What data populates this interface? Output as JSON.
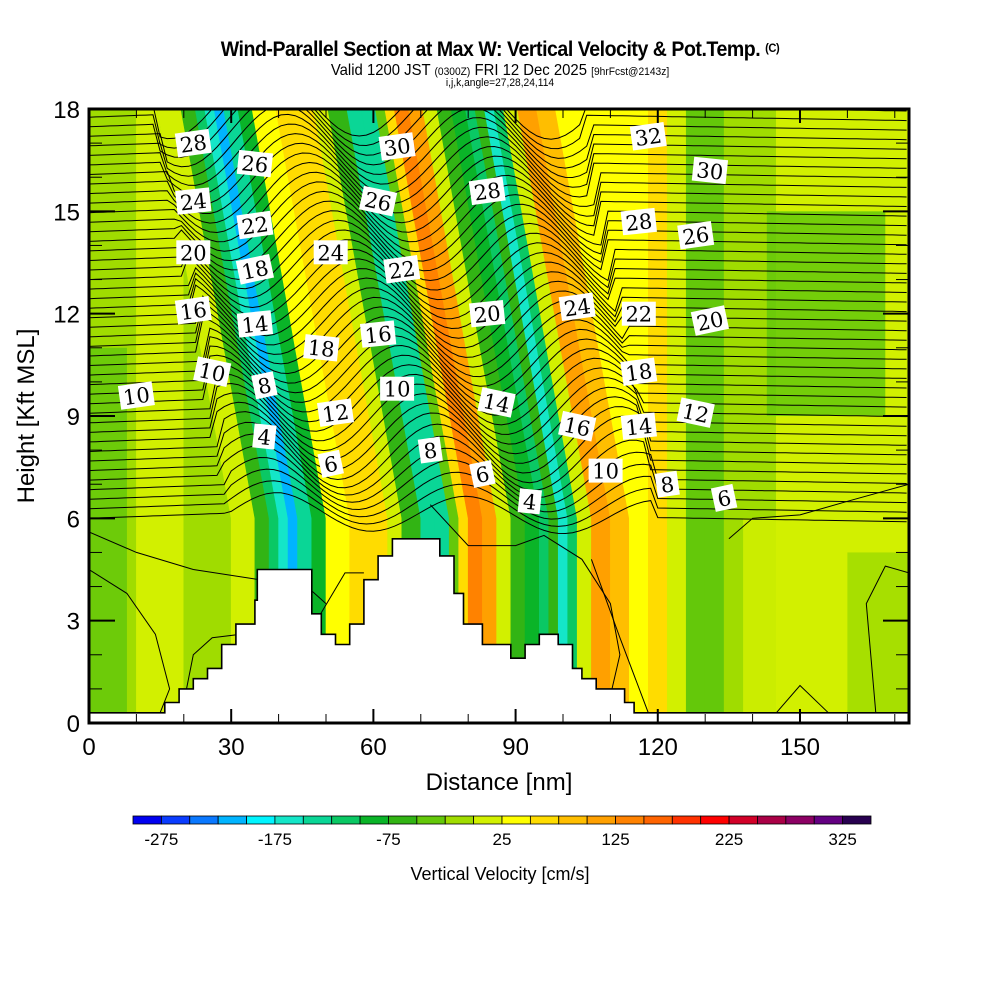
{
  "header": {
    "title": "Wind-Parallel Section at Max W: Vertical Velocity & Pot.Temp.",
    "title_mark": "(C)",
    "valid_prefix": "Valid 1200 JST",
    "valid_utc": "(0300Z)",
    "valid_date": "FRI 12 Dec 2025",
    "forecast_info": "[9hrFcst@2143z]",
    "indices": "i,j,k,angle=27,28,24,114"
  },
  "chart_data": {
    "type": "heatmap",
    "title": "Wind-Parallel Section at Max W: Vertical Velocity & Pot.Temp.",
    "xlabel": "Distance [nm]",
    "ylabel": "Height [Kft MSL]",
    "xlim": [
      0,
      173
    ],
    "ylim": [
      0,
      18
    ],
    "xticks": [
      0,
      30,
      60,
      90,
      120,
      150
    ],
    "xtick_labels": [
      "0",
      "30",
      "60",
      "90",
      "120",
      "150"
    ],
    "xminor_step": 10,
    "yticks": [
      0,
      3,
      6,
      9,
      12,
      15,
      18
    ],
    "ytick_labels": [
      "0",
      "3",
      "6",
      "9",
      "12",
      "15",
      "18"
    ],
    "yminor_step": 1,
    "grid": false,
    "colorbar": {
      "label": "Vertical Velocity [cm/s]",
      "placement": "bottom",
      "min": -300,
      "max": 350,
      "step": 25,
      "tick_values": [
        -275,
        -175,
        -75,
        25,
        125,
        225,
        325
      ],
      "tick_labels": [
        "-275",
        "-175",
        "-75",
        "25",
        "125",
        "225",
        "325"
      ],
      "colors": [
        "#0000f0",
        "#0a3cff",
        "#0a78ff",
        "#00b4ff",
        "#00f5ff",
        "#14e6c8",
        "#0ad696",
        "#0ac864",
        "#0ab428",
        "#32b414",
        "#64c80a",
        "#a0dc00",
        "#d2f000",
        "#ffff00",
        "#ffdc00",
        "#ffbe00",
        "#ffa000",
        "#ff8200",
        "#ff6400",
        "#ff3200",
        "#ff0000",
        "#d20028",
        "#aa0046",
        "#8c0064",
        "#640082",
        "#280050"
      ]
    },
    "velocity_bands": {
      "description": "Vertical velocity (cm/s) per column band, approximate, mid-levels",
      "x_nm": [
        0,
        10,
        20,
        30,
        35,
        38,
        40,
        42,
        44,
        47,
        50,
        55,
        60,
        63,
        66,
        70,
        73,
        76,
        78,
        80,
        83,
        86,
        89,
        92,
        95,
        97,
        99,
        101,
        103,
        106,
        110,
        114,
        118,
        122,
        126,
        130,
        134,
        138,
        145,
        152,
        160,
        166,
        173
      ],
      "w_cms": [
        -25,
        0,
        -10,
        0,
        -60,
        -120,
        -175,
        -220,
        -150,
        -80,
        30,
        60,
        50,
        10,
        -60,
        -150,
        -150,
        -40,
        60,
        125,
        100,
        20,
        -60,
        -100,
        -120,
        -60,
        -175,
        -120,
        0,
        100,
        80,
        30,
        50,
        0,
        -40,
        -50,
        -25,
        -10,
        0,
        10,
        20,
        0,
        0
      ]
    },
    "theta_contours": {
      "units": "C (pot. temp. minus offset)",
      "labels": [
        {
          "value": "28",
          "x_nm": 22,
          "z_kft": 17.0
        },
        {
          "value": "26",
          "x_nm": 35,
          "z_kft": 16.4
        },
        {
          "value": "24",
          "x_nm": 22,
          "z_kft": 15.3
        },
        {
          "value": "22",
          "x_nm": 35,
          "z_kft": 14.6
        },
        {
          "value": "20",
          "x_nm": 22,
          "z_kft": 13.8
        },
        {
          "value": "18",
          "x_nm": 35,
          "z_kft": 13.3
        },
        {
          "value": "16",
          "x_nm": 22,
          "z_kft": 12.1
        },
        {
          "value": "14",
          "x_nm": 35,
          "z_kft": 11.7
        },
        {
          "value": "10",
          "x_nm": 26,
          "z_kft": 10.3
        },
        {
          "value": "10",
          "x_nm": 10,
          "z_kft": 9.6
        },
        {
          "value": "8",
          "x_nm": 37,
          "z_kft": 9.9
        },
        {
          "value": "4",
          "x_nm": 37,
          "z_kft": 8.4
        },
        {
          "value": "30",
          "x_nm": 65,
          "z_kft": 16.9
        },
        {
          "value": "26",
          "x_nm": 61,
          "z_kft": 15.3
        },
        {
          "value": "24",
          "x_nm": 51,
          "z_kft": 13.8
        },
        {
          "value": "22",
          "x_nm": 66,
          "z_kft": 13.3
        },
        {
          "value": "18",
          "x_nm": 49,
          "z_kft": 11.0
        },
        {
          "value": "16",
          "x_nm": 61,
          "z_kft": 11.4
        },
        {
          "value": "12",
          "x_nm": 52,
          "z_kft": 9.1
        },
        {
          "value": "10",
          "x_nm": 65,
          "z_kft": 9.8
        },
        {
          "value": "6",
          "x_nm": 51,
          "z_kft": 7.6
        },
        {
          "value": "28",
          "x_nm": 84,
          "z_kft": 15.6
        },
        {
          "value": "20",
          "x_nm": 84,
          "z_kft": 12.0
        },
        {
          "value": "14",
          "x_nm": 86,
          "z_kft": 9.4
        },
        {
          "value": "8",
          "x_nm": 72,
          "z_kft": 8.0
        },
        {
          "value": "6",
          "x_nm": 83,
          "z_kft": 7.3
        },
        {
          "value": "4",
          "x_nm": 93,
          "z_kft": 6.5
        },
        {
          "value": "24",
          "x_nm": 103,
          "z_kft": 12.2
        },
        {
          "value": "16",
          "x_nm": 103,
          "z_kft": 8.7
        },
        {
          "value": "10",
          "x_nm": 109,
          "z_kft": 7.4
        },
        {
          "value": "32",
          "x_nm": 118,
          "z_kft": 17.2
        },
        {
          "value": "30",
          "x_nm": 131,
          "z_kft": 16.2
        },
        {
          "value": "28",
          "x_nm": 116,
          "z_kft": 14.7
        },
        {
          "value": "26",
          "x_nm": 128,
          "z_kft": 14.3
        },
        {
          "value": "22",
          "x_nm": 116,
          "z_kft": 12.0
        },
        {
          "value": "20",
          "x_nm": 131,
          "z_kft": 11.8
        },
        {
          "value": "18",
          "x_nm": 116,
          "z_kft": 10.3
        },
        {
          "value": "14",
          "x_nm": 116,
          "z_kft": 8.7
        },
        {
          "value": "12",
          "x_nm": 128,
          "z_kft": 9.1
        },
        {
          "value": "8",
          "x_nm": 122,
          "z_kft": 7.0
        },
        {
          "value": "6",
          "x_nm": 134,
          "z_kft": 6.6
        }
      ]
    },
    "terrain": {
      "description": "Terrain height profile (kft) stepped",
      "x_nm": [
        0,
        16,
        19,
        22,
        25,
        28,
        31,
        32,
        35,
        35.5,
        45,
        47,
        49,
        52,
        55,
        58,
        61,
        64,
        65,
        74,
        77,
        79,
        83,
        86,
        89,
        92,
        95,
        97,
        99,
        102,
        104,
        107,
        110,
        113,
        115,
        119,
        120,
        173
      ],
      "z_kft": [
        0.3,
        0.6,
        1.0,
        1.3,
        1.6,
        2.3,
        2.9,
        2.9,
        3.6,
        4.5,
        4.5,
        3.2,
        2.6,
        2.3,
        2.9,
        4.2,
        4.9,
        5.4,
        5.4,
        4.9,
        3.8,
        2.9,
        2.3,
        2.3,
        1.9,
        2.3,
        2.6,
        2.6,
        2.3,
        1.6,
        1.3,
        1.0,
        1.0,
        0.6,
        0.3,
        0.3,
        0.3,
        0.3
      ]
    }
  }
}
